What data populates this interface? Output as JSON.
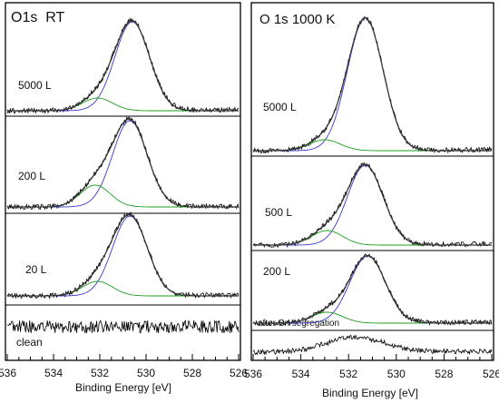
{
  "chart_data": [
    {
      "type": "line",
      "title": "O1s  RT",
      "xlabel": "Binding Energy [eV]",
      "xlim": [
        536,
        526
      ],
      "xticks": [
        536,
        534,
        532,
        530,
        528,
        526
      ],
      "colors": {
        "data": "#000000",
        "fit_main": "#3a3acc",
        "fit_shoulder": "#1e9e1e"
      },
      "traces": [
        {
          "label": "5000 L",
          "main_peak_ev": 530.6,
          "shoulder_ev": 532.1
        },
        {
          "label": "200 L",
          "main_peak_ev": 530.7,
          "shoulder_ev": 532.2
        },
        {
          "label": "20 L",
          "main_peak_ev": 530.7,
          "shoulder_ev": 532.1
        },
        {
          "label": "clean"
        }
      ]
    },
    {
      "type": "line",
      "title": "O 1s 1000 K",
      "xlabel": "Binding Energy [eV]",
      "xlim": [
        536,
        526
      ],
      "xticks": [
        536,
        534,
        532,
        530,
        528,
        526
      ],
      "colors": {
        "data": "#000000",
        "fit_main": "#3a3acc",
        "fit_shoulder": "#1e9e1e"
      },
      "traces": [
        {
          "label": "5000 L",
          "main_peak_ev": 531.3,
          "shoulder_ev": 533.0
        },
        {
          "label": "500 L",
          "main_peak_ev": 531.3,
          "shoulder_ev": 532.9
        },
        {
          "label": "200 L",
          "main_peak_ev": 531.2,
          "shoulder_ev": 532.9
        },
        {
          "label": "after Sn segregation",
          "main_peak_ev": 531.7
        }
      ]
    }
  ]
}
